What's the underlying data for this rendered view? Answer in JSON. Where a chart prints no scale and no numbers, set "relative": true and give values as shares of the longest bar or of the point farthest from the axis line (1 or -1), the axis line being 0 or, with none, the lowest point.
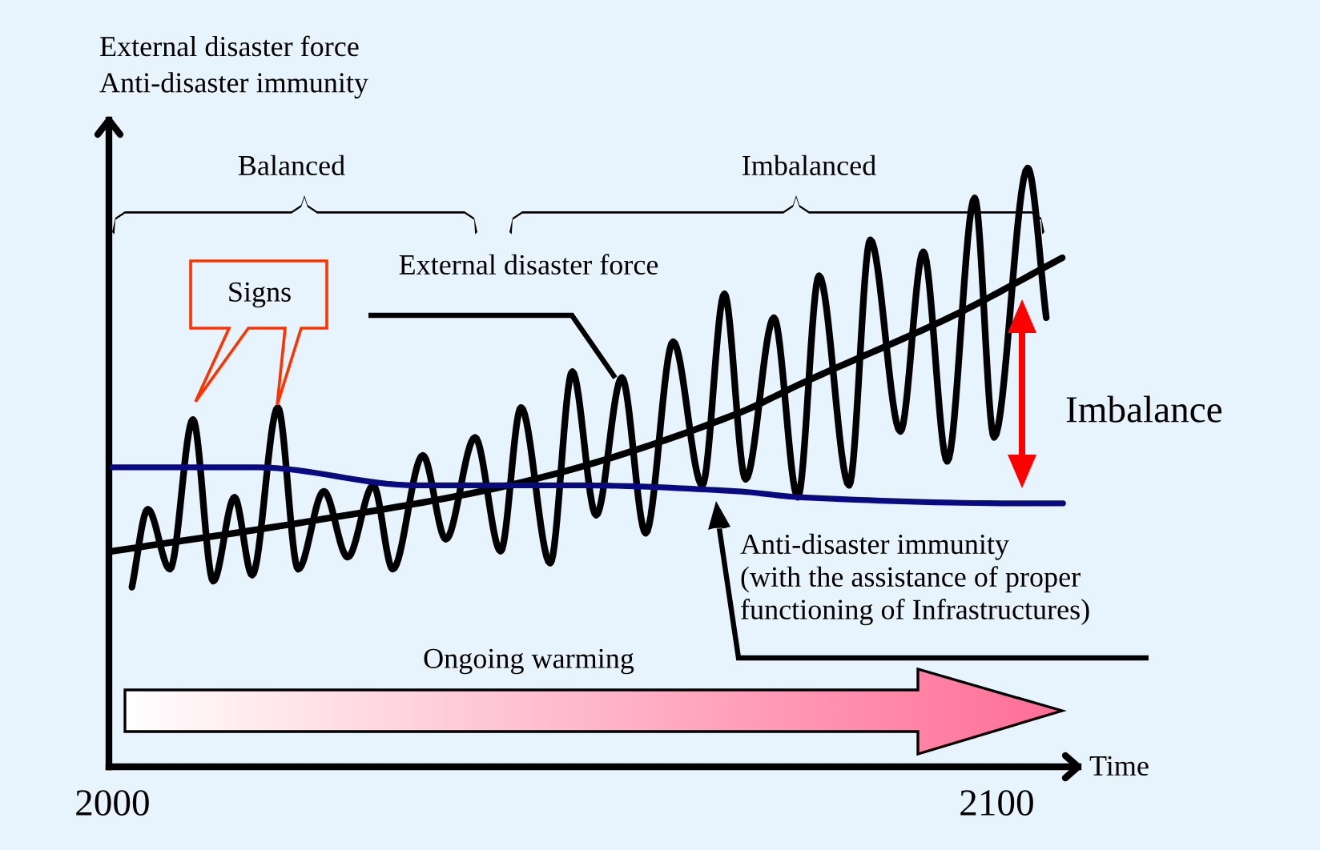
{
  "chart_data": {
    "type": "line",
    "relative": true,
    "tick_labels": "x",
    "legend": false,
    "grid": false,
    "ylabel": "External disaster force\nAnti-disaster immunity",
    "xlabel": "Time",
    "xlim": [
      1999.6,
      2109.2
    ],
    "xticks": [
      2000,
      2100
    ],
    "series": [
      {
        "name": "External disaster force",
        "color": "#000000",
        "x": [
          2002.2,
          2004.0,
          2006.5,
          2009.1,
          2011.4,
          2013.8,
          2015.8,
          2018.7,
          2021.0,
          2023.9,
          2026.6,
          2029.5,
          2031.7,
          2035.1,
          2037.7,
          2041.0,
          2043.9,
          2046.2,
          2049.5,
          2052.0,
          2054.7,
          2057.6,
          2060.3,
          2063.4,
          2066.7,
          2069.2,
          2071.6,
          2074.8,
          2077.5,
          2079.9,
          2083.3,
          2085.7,
          2089.1,
          2091.7,
          2094.4,
          2097.5,
          2099.7,
          2103.5,
          2105.6
        ],
        "values": [
          0.3,
          0.43,
          0.33,
          0.58,
          0.31,
          0.45,
          0.32,
          0.6,
          0.33,
          0.46,
          0.35,
          0.47,
          0.33,
          0.52,
          0.38,
          0.55,
          0.36,
          0.6,
          0.34,
          0.66,
          0.42,
          0.65,
          0.39,
          0.71,
          0.47,
          0.79,
          0.48,
          0.75,
          0.45,
          0.82,
          0.47,
          0.88,
          0.56,
          0.86,
          0.51,
          0.95,
          0.55,
          1.0,
          0.75
        ]
      },
      {
        "color": "#000000",
        "x": [
          2000,
          2022.3,
          2044.8,
          2070.7,
          2077.9,
          2096.0,
          2107.4
        ],
        "values": [
          0.36,
          0.41,
          0.47,
          0.59,
          0.64,
          0.76,
          0.85
        ]
      },
      {
        "name": "Anti-disaster immunity\n(with the assistance of proper\nfunctioning of Infrastructures)",
        "color": "#0a0a80",
        "x": [
          2000,
          2016.3,
          2034.4,
          2052.5,
          2070.7,
          2077.9,
          2102.0,
          2107.5
        ],
        "values": [
          0.5,
          0.5,
          0.47,
          0.47,
          0.46,
          0.45,
          0.44,
          0.44
        ]
      }
    ],
    "annotations": [
      "Balanced",
      "Imbalanced",
      "Signs",
      "Imbalance",
      "Ongoing warming"
    ]
  }
}
